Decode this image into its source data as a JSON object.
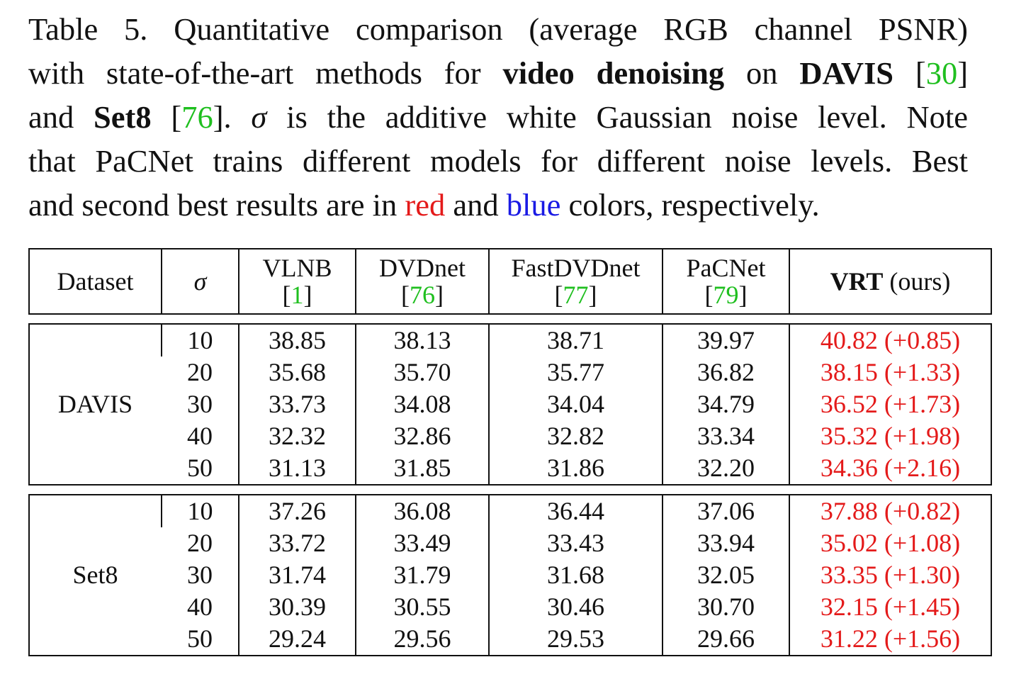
{
  "caption": {
    "lines": [
      [
        {
          "t": "Table 5.  Quantitative comparison (average RGB channel PSNR)"
        }
      ],
      [
        {
          "t": "with state-of-the-art methods for "
        },
        {
          "t": "video denoising",
          "s": "b"
        },
        {
          "t": " on "
        },
        {
          "t": "DAVIS",
          "s": "b"
        },
        {
          "t": " ["
        },
        {
          "t": "30",
          "s": "cite"
        },
        {
          "t": "]"
        }
      ],
      [
        {
          "t": "and "
        },
        {
          "t": "Set8",
          "s": "b"
        },
        {
          "t": " ["
        },
        {
          "t": "76",
          "s": "cite"
        },
        {
          "t": "]. "
        },
        {
          "t": "σ",
          "s": "i"
        },
        {
          "t": " is the additive white Gaussian noise level.  Note"
        }
      ],
      [
        {
          "t": "that PaCNet trains different models for different noise levels. Best"
        }
      ],
      [
        {
          "t": "and second best results are in "
        },
        {
          "t": "red",
          "s": "red"
        },
        {
          "t": " and "
        },
        {
          "t": "blue",
          "s": "blue"
        },
        {
          "t": " colors, respectively."
        }
      ]
    ]
  },
  "table": {
    "header": {
      "dataset": "Dataset",
      "sigma": "σ",
      "methods": [
        {
          "name": "VLNB",
          "open": "[",
          "ref": "1",
          "close": "]"
        },
        {
          "name": "DVDnet",
          "open": "[",
          "ref": "76",
          "close": "]"
        },
        {
          "name": "FastDVDnet",
          "open": "[",
          "ref": "77",
          "close": "]"
        },
        {
          "name": "PaCNet",
          "open": "[",
          "ref": "79",
          "close": "]"
        }
      ],
      "ours_bold": "VRT",
      "ours_suffix": " (ours)"
    },
    "groups": [
      {
        "dataset": "DAVIS",
        "rows": [
          {
            "sigma": "10",
            "vlnb": "38.85",
            "dvdnet": "38.13",
            "fastdvdnet": "38.71",
            "pacnet": "39.97",
            "vrt": "40.82 (+0.85)"
          },
          {
            "sigma": "20",
            "vlnb": "35.68",
            "dvdnet": "35.70",
            "fastdvdnet": "35.77",
            "pacnet": "36.82",
            "vrt": "38.15 (+1.33)"
          },
          {
            "sigma": "30",
            "vlnb": "33.73",
            "dvdnet": "34.08",
            "fastdvdnet": "34.04",
            "pacnet": "34.79",
            "vrt": "36.52 (+1.73)"
          },
          {
            "sigma": "40",
            "vlnb": "32.32",
            "dvdnet": "32.86",
            "fastdvdnet": "32.82",
            "pacnet": "33.34",
            "vrt": "35.32 (+1.98)"
          },
          {
            "sigma": "50",
            "vlnb": "31.13",
            "dvdnet": "31.85",
            "fastdvdnet": "31.86",
            "pacnet": "32.20",
            "vrt": "34.36 (+2.16)"
          }
        ]
      },
      {
        "dataset": "Set8",
        "rows": [
          {
            "sigma": "10",
            "vlnb": "37.26",
            "dvdnet": "36.08",
            "fastdvdnet": "36.44",
            "pacnet": "37.06",
            "vrt": "37.88 (+0.82)"
          },
          {
            "sigma": "20",
            "vlnb": "33.72",
            "dvdnet": "33.49",
            "fastdvdnet": "33.43",
            "pacnet": "33.94",
            "vrt": "35.02 (+1.08)"
          },
          {
            "sigma": "30",
            "vlnb": "31.74",
            "dvdnet": "31.79",
            "fastdvdnet": "31.68",
            "pacnet": "32.05",
            "vrt": "33.35 (+1.30)"
          },
          {
            "sigma": "40",
            "vlnb": "30.39",
            "dvdnet": "30.55",
            "fastdvdnet": "30.46",
            "pacnet": "30.70",
            "vrt": "32.15 (+1.45)"
          },
          {
            "sigma": "50",
            "vlnb": "29.24",
            "dvdnet": "29.56",
            "fastdvdnet": "29.53",
            "pacnet": "29.66",
            "vrt": "31.22 (+1.56)"
          }
        ]
      }
    ],
    "colors": {
      "best": "#e41a1a",
      "second": "#1a1ae4",
      "citation": "#1fbf1f"
    }
  }
}
